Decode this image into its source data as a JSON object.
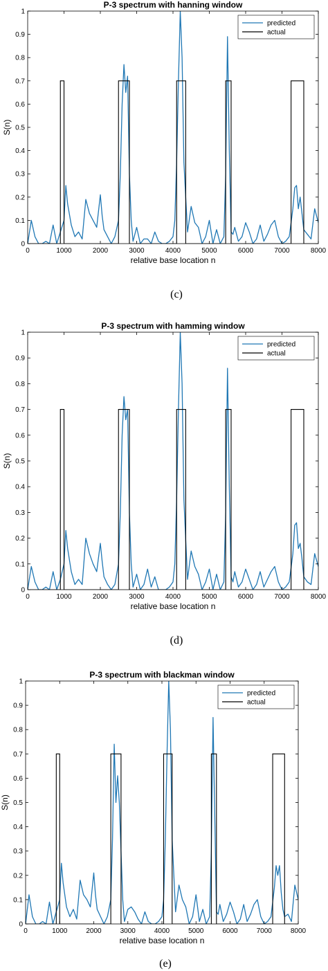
{
  "colors": {
    "predicted": "#1f77b4",
    "actual": "#000000",
    "axis": "#000000"
  },
  "captions": [
    "(c)",
    "(d)",
    "(e)"
  ],
  "chart_data": [
    {
      "type": "line",
      "title": "P-3 spectrum with hanning window",
      "xlabel": "relative base location n",
      "ylabel": "S(n)",
      "xlim": [
        0,
        8000
      ],
      "ylim": [
        0,
        1
      ],
      "xticks": [
        0,
        1000,
        2000,
        3000,
        4000,
        5000,
        6000,
        7000,
        8000
      ],
      "xtick_labels": [
        "0",
        "1000",
        "2000",
        "3000",
        "4000",
        "5000",
        "6000",
        "7000",
        "8000"
      ],
      "yticks": [
        0,
        0.1,
        0.2,
        0.3,
        0.4,
        0.5,
        0.6,
        0.7,
        0.8,
        0.9,
        1
      ],
      "ytick_labels": [
        "0",
        "0.1",
        "0.2",
        "0.3",
        "0.4",
        "0.5",
        "0.6",
        "0.7",
        "0.8",
        "0.9",
        "1"
      ],
      "legend": {
        "position": "top-right",
        "entries": [
          "predicted",
          "actual"
        ]
      },
      "grid": false,
      "series": [
        {
          "name": "predicted",
          "x": [
            0,
            100,
            200,
            300,
            400,
            500,
            600,
            700,
            800,
            900,
            1000,
            1050,
            1100,
            1200,
            1300,
            1400,
            1500,
            1600,
            1700,
            1800,
            1900,
            2000,
            2050,
            2100,
            2200,
            2300,
            2400,
            2500,
            2550,
            2600,
            2650,
            2700,
            2750,
            2800,
            2850,
            2900,
            3000,
            3100,
            3200,
            3300,
            3400,
            3500,
            3600,
            3700,
            3800,
            3900,
            4000,
            4050,
            4100,
            4150,
            4200,
            4250,
            4300,
            4400,
            4500,
            4600,
            4700,
            4800,
            4900,
            5000,
            5100,
            5200,
            5300,
            5400,
            5450,
            5500,
            5550,
            5600,
            5650,
            5700,
            5800,
            5900,
            6000,
            6100,
            6200,
            6300,
            6400,
            6500,
            6600,
            6700,
            6800,
            6900,
            7000,
            7100,
            7200,
            7300,
            7350,
            7400,
            7450,
            7500,
            7550,
            7600,
            7700,
            7800,
            7900,
            8000
          ],
          "y": [
            0.0,
            0.1,
            0.03,
            0.0,
            0.0,
            0.01,
            0.0,
            0.08,
            0.0,
            0.05,
            0.1,
            0.25,
            0.17,
            0.08,
            0.03,
            0.05,
            0.02,
            0.19,
            0.13,
            0.1,
            0.07,
            0.21,
            0.12,
            0.06,
            0.03,
            0.0,
            0.03,
            0.1,
            0.3,
            0.6,
            0.77,
            0.65,
            0.72,
            0.3,
            0.1,
            0.01,
            0.07,
            0.0,
            0.02,
            0.02,
            0.0,
            0.05,
            0.01,
            0.0,
            0.0,
            0.01,
            0.03,
            0.1,
            0.35,
            0.7,
            1.0,
            0.8,
            0.35,
            0.05,
            0.16,
            0.09,
            0.07,
            0.0,
            0.03,
            0.1,
            0.0,
            0.06,
            0.0,
            0.03,
            0.3,
            0.89,
            0.4,
            0.05,
            0.04,
            0.07,
            0.01,
            0.03,
            0.09,
            0.05,
            0.0,
            0.02,
            0.08,
            0.01,
            0.04,
            0.08,
            0.1,
            0.03,
            0.0,
            0.01,
            0.03,
            0.15,
            0.24,
            0.25,
            0.15,
            0.2,
            0.13,
            0.06,
            0.04,
            0.02,
            0.15,
            0.09
          ]
        },
        {
          "name": "actual",
          "x": [
            0,
            900,
            900,
            1000,
            1000,
            2500,
            2500,
            2800,
            2800,
            4100,
            4100,
            4350,
            4350,
            5450,
            5450,
            5600,
            5600,
            7250,
            7250,
            7600,
            7600,
            8000
          ],
          "y": [
            0,
            0,
            0.7,
            0.7,
            0,
            0,
            0.7,
            0.7,
            0,
            0,
            0.7,
            0.7,
            0,
            0,
            0.7,
            0.7,
            0,
            0,
            0.7,
            0.7,
            0,
            0
          ]
        }
      ]
    },
    {
      "type": "line",
      "title": "P-3 spectrum with hamming window",
      "xlabel": "relative base location n",
      "ylabel": "S(n)",
      "xlim": [
        0,
        8000
      ],
      "ylim": [
        0,
        1
      ],
      "xticks": [
        0,
        1000,
        2000,
        3000,
        4000,
        5000,
        6000,
        7000,
        8000
      ],
      "xtick_labels": [
        "0",
        "1000",
        "2000",
        "3000",
        "4000",
        "5000",
        "6000",
        "7000",
        "8000"
      ],
      "yticks": [
        0,
        0.1,
        0.2,
        0.3,
        0.4,
        0.5,
        0.6,
        0.7,
        0.8,
        0.9,
        1
      ],
      "ytick_labels": [
        "0",
        "0.1",
        "0.2",
        "0.3",
        "0.4",
        "0.5",
        "0.6",
        "0.7",
        "0.8",
        "0.9",
        "1"
      ],
      "legend": {
        "position": "top-right",
        "entries": [
          "predicted",
          "actual"
        ]
      },
      "grid": false,
      "series": [
        {
          "name": "predicted",
          "x": [
            0,
            100,
            200,
            300,
            400,
            500,
            600,
            700,
            800,
            900,
            1000,
            1050,
            1100,
            1200,
            1300,
            1400,
            1500,
            1600,
            1700,
            1800,
            1900,
            2000,
            2050,
            2100,
            2200,
            2300,
            2400,
            2500,
            2550,
            2600,
            2650,
            2700,
            2750,
            2800,
            2850,
            2900,
            3000,
            3100,
            3200,
            3300,
            3400,
            3500,
            3600,
            3700,
            3800,
            3900,
            4000,
            4050,
            4100,
            4150,
            4200,
            4250,
            4300,
            4400,
            4500,
            4600,
            4700,
            4800,
            4900,
            5000,
            5100,
            5200,
            5300,
            5400,
            5450,
            5500,
            5550,
            5600,
            5650,
            5700,
            5800,
            5900,
            6000,
            6100,
            6200,
            6300,
            6400,
            6500,
            6600,
            6700,
            6800,
            6900,
            7000,
            7100,
            7200,
            7300,
            7350,
            7400,
            7450,
            7500,
            7550,
            7600,
            7700,
            7800,
            7900,
            8000
          ],
          "y": [
            0.0,
            0.09,
            0.03,
            0.0,
            0.0,
            0.01,
            0.0,
            0.07,
            0.0,
            0.04,
            0.1,
            0.23,
            0.16,
            0.07,
            0.02,
            0.04,
            0.02,
            0.2,
            0.14,
            0.1,
            0.07,
            0.18,
            0.11,
            0.05,
            0.02,
            0.0,
            0.02,
            0.1,
            0.3,
            0.6,
            0.75,
            0.66,
            0.7,
            0.3,
            0.1,
            0.01,
            0.06,
            0.0,
            0.02,
            0.08,
            0.01,
            0.05,
            0.0,
            0.0,
            0.0,
            0.01,
            0.03,
            0.1,
            0.35,
            0.7,
            1.0,
            0.8,
            0.35,
            0.04,
            0.15,
            0.09,
            0.06,
            0.0,
            0.03,
            0.08,
            0.0,
            0.06,
            0.0,
            0.03,
            0.3,
            0.86,
            0.4,
            0.05,
            0.03,
            0.07,
            0.01,
            0.03,
            0.08,
            0.04,
            0.0,
            0.02,
            0.07,
            0.01,
            0.04,
            0.07,
            0.09,
            0.03,
            0.0,
            0.01,
            0.03,
            0.14,
            0.25,
            0.26,
            0.16,
            0.18,
            0.12,
            0.05,
            0.03,
            0.02,
            0.14,
            0.09
          ]
        },
        {
          "name": "actual",
          "x": [
            0,
            900,
            900,
            1000,
            1000,
            2500,
            2500,
            2800,
            2800,
            4100,
            4100,
            4350,
            4350,
            5450,
            5450,
            5600,
            5600,
            7250,
            7250,
            7600,
            7600,
            8000
          ],
          "y": [
            0,
            0,
            0.7,
            0.7,
            0,
            0,
            0.7,
            0.7,
            0,
            0,
            0.7,
            0.7,
            0,
            0,
            0.7,
            0.7,
            0,
            0,
            0.7,
            0.7,
            0,
            0
          ]
        }
      ]
    },
    {
      "type": "line",
      "title": "P-3 spectrum with blackman window",
      "xlabel": "relative base location n",
      "ylabel": "S(n)",
      "xlim": [
        0,
        8000
      ],
      "ylim": [
        0,
        1
      ],
      "xticks": [
        0,
        1000,
        2000,
        3000,
        4000,
        5000,
        6000,
        7000,
        8000
      ],
      "xtick_labels": [
        "0",
        "1000",
        "2000",
        "3000",
        "4000",
        "5000",
        "6000",
        "7000",
        "8000"
      ],
      "yticks": [
        0,
        0.1,
        0.2,
        0.3,
        0.4,
        0.5,
        0.6,
        0.7,
        0.8,
        0.9,
        1
      ],
      "ytick_labels": [
        "0",
        "0.1",
        "0.2",
        "0.3",
        "0.4",
        "0.5",
        "0.6",
        "0.7",
        "0.8",
        "0.9",
        "1"
      ],
      "legend": {
        "position": "top-right",
        "entries": [
          "predicted",
          "actual"
        ]
      },
      "grid": false,
      "series": [
        {
          "name": "predicted",
          "x": [
            0,
            100,
            200,
            300,
            400,
            500,
            600,
            700,
            800,
            900,
            1000,
            1050,
            1100,
            1200,
            1300,
            1400,
            1500,
            1600,
            1700,
            1800,
            1900,
            2000,
            2050,
            2100,
            2200,
            2300,
            2400,
            2500,
            2550,
            2600,
            2650,
            2700,
            2750,
            2800,
            2850,
            2900,
            3000,
            3100,
            3200,
            3300,
            3400,
            3500,
            3600,
            3700,
            3800,
            3900,
            4000,
            4050,
            4100,
            4150,
            4200,
            4250,
            4300,
            4400,
            4500,
            4600,
            4700,
            4800,
            4900,
            5000,
            5100,
            5200,
            5300,
            5400,
            5450,
            5500,
            5550,
            5600,
            5650,
            5700,
            5800,
            5900,
            6000,
            6100,
            6200,
            6300,
            6400,
            6500,
            6600,
            6700,
            6800,
            6900,
            7000,
            7100,
            7200,
            7300,
            7350,
            7400,
            7450,
            7500,
            7550,
            7600,
            7700,
            7800,
            7900,
            8000
          ],
          "y": [
            0.0,
            0.12,
            0.03,
            0.0,
            0.0,
            0.01,
            0.0,
            0.09,
            0.0,
            0.05,
            0.1,
            0.25,
            0.17,
            0.07,
            0.03,
            0.06,
            0.02,
            0.18,
            0.12,
            0.1,
            0.07,
            0.21,
            0.12,
            0.06,
            0.03,
            0.0,
            0.03,
            0.1,
            0.35,
            0.74,
            0.5,
            0.61,
            0.5,
            0.3,
            0.1,
            0.01,
            0.06,
            0.07,
            0.05,
            0.02,
            0.0,
            0.05,
            0.01,
            0.0,
            0.0,
            0.01,
            0.03,
            0.1,
            0.35,
            0.7,
            1.0,
            0.8,
            0.35,
            0.05,
            0.16,
            0.1,
            0.07,
            0.0,
            0.03,
            0.12,
            0.01,
            0.06,
            0.0,
            0.03,
            0.3,
            0.85,
            0.45,
            0.05,
            0.04,
            0.08,
            0.01,
            0.04,
            0.09,
            0.05,
            0.0,
            0.02,
            0.08,
            0.01,
            0.04,
            0.08,
            0.1,
            0.03,
            0.0,
            0.01,
            0.03,
            0.15,
            0.24,
            0.2,
            0.24,
            0.13,
            0.06,
            0.03,
            0.04,
            0.01,
            0.16,
            0.1
          ]
        },
        {
          "name": "actual",
          "x": [
            0,
            900,
            900,
            1000,
            1000,
            2500,
            2500,
            2800,
            2800,
            4050,
            4050,
            4300,
            4300,
            5450,
            5450,
            5600,
            5600,
            7250,
            7250,
            7600,
            7600,
            8000
          ],
          "y": [
            0,
            0,
            0.7,
            0.7,
            0,
            0,
            0.7,
            0.7,
            0,
            0,
            0.7,
            0.7,
            0,
            0,
            0.7,
            0.7,
            0,
            0,
            0.7,
            0.7,
            0,
            0
          ]
        }
      ]
    }
  ]
}
